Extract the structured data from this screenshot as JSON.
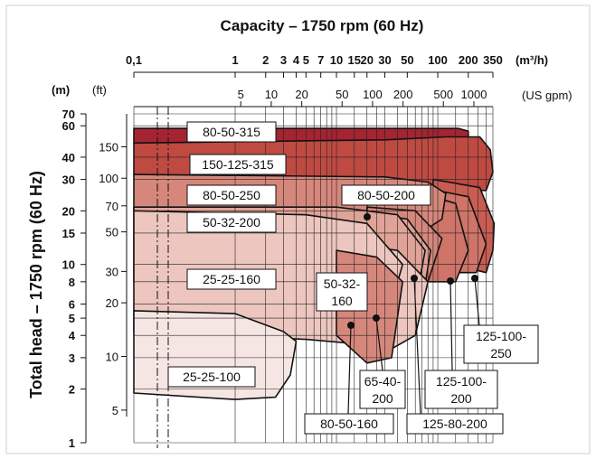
{
  "colors": {
    "grid": "#222222",
    "frame": "#cfcfcf",
    "zones": [
      "#f6e6e3",
      "#ecc6bf",
      "#e0a397",
      "#d6877b",
      "#cf7468",
      "#c95d52",
      "#bf4a42",
      "#b03436",
      "#a52431"
    ]
  },
  "chart_data": {
    "type": "area",
    "title": "Capacity – 1750 rpm (60 Hz)",
    "ylabel": "Total head – 1750 rpm (60 Hz)",
    "x_m3h": {
      "unit": "(m³/h)",
      "ticks": [
        "0,1",
        "1",
        "2",
        "3",
        "4",
        "5",
        "7",
        "10",
        "15",
        "20",
        "30",
        "50",
        "100",
        "200",
        "350"
      ]
    },
    "x_gpm": {
      "unit": "(US gpm)",
      "ticks": [
        "5",
        "10",
        "20",
        "50",
        "100",
        "200",
        "500",
        "1000"
      ]
    },
    "y_m": {
      "unit": "(m)",
      "ticks": [
        "1",
        "2",
        "3",
        "4",
        "5",
        "6",
        "8",
        "10",
        "15",
        "20",
        "30",
        "40",
        "60",
        "70"
      ]
    },
    "y_ft": {
      "unit": "(ft)",
      "ticks": [
        "5",
        "10",
        "20",
        "30",
        "50",
        "70",
        "100",
        "150"
      ]
    },
    "series": [
      {
        "name": "25-25-100",
        "q_m3h_range": [
          0.1,
          4
        ],
        "head_m_range": [
          1.9,
          5.5
        ]
      },
      {
        "name": "25-25-160",
        "q_m3h_range": [
          0.1,
          20
        ],
        "head_m_range": [
          2.5,
          20
        ]
      },
      {
        "name": "50-32-160",
        "q_m3h_range": [
          10,
          45
        ],
        "head_m_range": [
          2.8,
          12
        ]
      },
      {
        "name": "50-32-200",
        "q_m3h_range": [
          0.1,
          55
        ],
        "head_m_range": [
          4,
          21
        ]
      },
      {
        "name": "80-50-160",
        "q_m3h_range": [
          20,
          80
        ],
        "head_m_range": [
          3,
          13
        ]
      },
      {
        "name": "65-40-200",
        "q_m3h_range": [
          20,
          85
        ],
        "head_m_range": [
          4,
          20
        ]
      },
      {
        "name": "80-50-200",
        "q_m3h_range": [
          25,
          110
        ],
        "head_m_range": [
          5,
          26
        ]
      },
      {
        "name": "80-50-250",
        "q_m3h_range": [
          0.1,
          120
        ],
        "head_m_range": [
          8,
          32
        ]
      },
      {
        "name": "125-80-200",
        "q_m3h_range": [
          40,
          190
        ],
        "head_m_range": [
          6,
          27
        ]
      },
      {
        "name": "125-100-200",
        "q_m3h_range": [
          60,
          300
        ],
        "head_m_range": [
          6,
          26
        ]
      },
      {
        "name": "125-100-250",
        "q_m3h_range": [
          80,
          380
        ],
        "head_m_range": [
          8,
          30
        ]
      },
      {
        "name": "150-125-315",
        "q_m3h_range": [
          0.1,
          350
        ],
        "head_m_range": [
          13,
          48
        ]
      },
      {
        "name": "80-50-315",
        "q_m3h_range": [
          0.1,
          200
        ],
        "head_m_range": [
          45,
          58
        ]
      }
    ]
  }
}
